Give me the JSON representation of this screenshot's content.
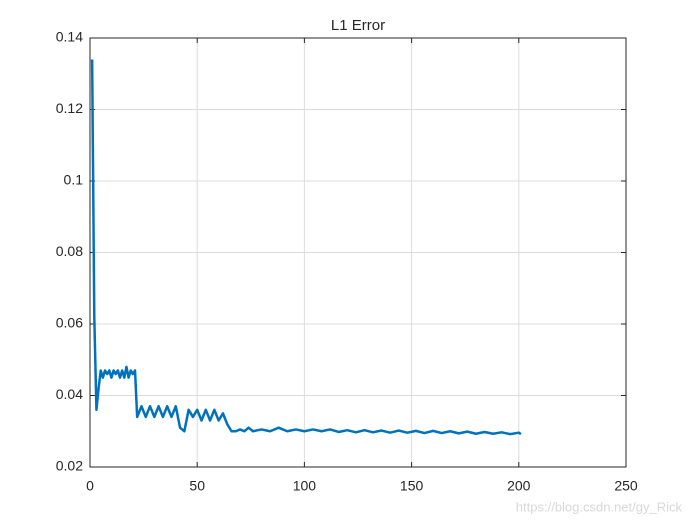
{
  "chart_data": {
    "type": "line",
    "title": "L1 Error",
    "x": [
      1,
      2,
      3,
      4,
      5,
      6,
      7,
      8,
      9,
      10,
      11,
      12,
      13,
      14,
      15,
      16,
      17,
      18,
      19,
      20,
      21,
      22,
      24,
      26,
      28,
      30,
      32,
      34,
      36,
      38,
      40,
      42,
      44,
      46,
      48,
      50,
      52,
      54,
      56,
      58,
      60,
      62,
      64,
      66,
      68,
      70,
      72,
      74,
      76,
      80,
      84,
      88,
      92,
      96,
      100,
      104,
      108,
      112,
      116,
      120,
      124,
      128,
      132,
      136,
      140,
      144,
      148,
      152,
      156,
      160,
      164,
      168,
      172,
      176,
      180,
      184,
      188,
      192,
      196,
      200,
      201
    ],
    "series": [
      {
        "name": "L1 Error",
        "color": "#0072bd",
        "values": [
          0.134,
          0.062,
          0.036,
          0.042,
          0.047,
          0.045,
          0.047,
          0.046,
          0.047,
          0.045,
          0.047,
          0.046,
          0.047,
          0.045,
          0.047,
          0.045,
          0.048,
          0.045,
          0.047,
          0.046,
          0.047,
          0.034,
          0.037,
          0.034,
          0.037,
          0.034,
          0.037,
          0.034,
          0.037,
          0.034,
          0.037,
          0.031,
          0.03,
          0.036,
          0.034,
          0.036,
          0.033,
          0.036,
          0.033,
          0.036,
          0.033,
          0.035,
          0.032,
          0.03,
          0.03,
          0.0305,
          0.03,
          0.031,
          0.03,
          0.0305,
          0.03,
          0.031,
          0.03,
          0.0305,
          0.03,
          0.0305,
          0.03,
          0.0305,
          0.0298,
          0.0303,
          0.0297,
          0.0303,
          0.0297,
          0.0302,
          0.0296,
          0.0302,
          0.0296,
          0.0301,
          0.0295,
          0.0301,
          0.0295,
          0.03,
          0.0294,
          0.0299,
          0.0293,
          0.0298,
          0.0293,
          0.0297,
          0.0292,
          0.0296,
          0.0292
        ]
      }
    ],
    "xlim": [
      0,
      250
    ],
    "xticks": [
      0,
      50,
      100,
      150,
      200,
      250
    ],
    "ylim": [
      0.02,
      0.14
    ],
    "yticks": [
      0.02,
      0.04,
      0.06,
      0.08,
      0.1,
      0.12,
      0.14
    ],
    "grid": true,
    "watermark": "https://blog.csdn.net/gy_Rick"
  }
}
